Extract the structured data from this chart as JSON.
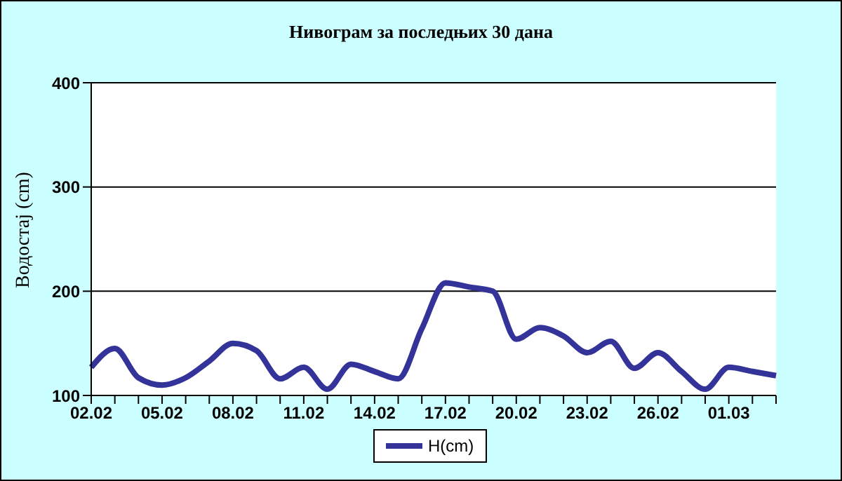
{
  "chart_data": {
    "type": "line",
    "title": "Нивограм за последњих 30 дана",
    "ylabel": "Водостај (cm)",
    "categories": [
      "02.02",
      null,
      null,
      "05.02",
      null,
      null,
      "08.02",
      null,
      null,
      "11.02",
      null,
      null,
      "14.02",
      null,
      null,
      "17.02",
      null,
      null,
      "20.02",
      null,
      null,
      "23.02",
      null,
      null,
      "26.02",
      null,
      null,
      "01.03",
      null,
      null
    ],
    "series": [
      {
        "name": "H(cm)",
        "color": "#333399",
        "values": [
          127,
          145,
          117,
          110,
          117,
          133,
          150,
          143,
          116,
          127,
          106,
          130,
          123,
          116,
          164,
          208,
          204,
          200,
          154,
          165,
          157,
          141,
          152,
          126,
          141,
          123,
          106,
          127,
          123,
          119
        ]
      }
    ],
    "ylim": [
      100,
      400
    ],
    "yticks": [
      100,
      200,
      300,
      400
    ],
    "grid": "y",
    "legend": "bottom",
    "marker": "none",
    "line_style": "solid"
  }
}
